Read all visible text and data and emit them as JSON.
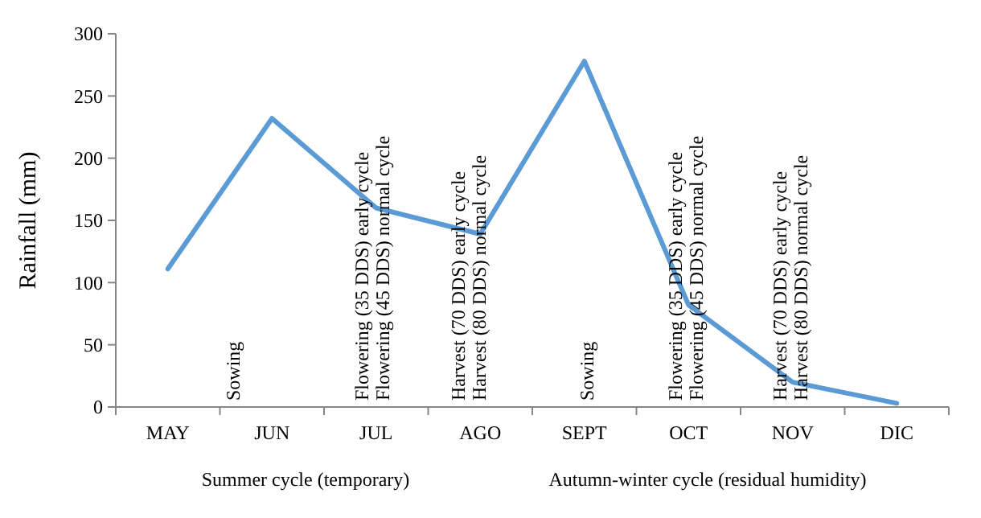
{
  "chart_data": {
    "type": "line",
    "ylabel": "Rainfall (mm)",
    "categories": [
      "MAY",
      "JUN",
      "JUL",
      "AGO",
      "SEPT",
      "OCT",
      "NOV",
      "DIC"
    ],
    "series": [
      {
        "color": "#5b9bd5",
        "values": [
          111,
          232,
          160,
          139,
          278,
          82,
          20,
          3
        ]
      }
    ],
    "ylim": [
      0,
      300
    ],
    "yticks": [
      0,
      50,
      100,
      150,
      200,
      250,
      300
    ],
    "grid": false,
    "marker": "none",
    "line_style": "solid",
    "annotations": [
      "Sowing",
      "Flowering (35 DDS) early cycle",
      "Flowering (45 DDS) normal cycle",
      "Harvest (70 DDS) early cycle",
      "Harvest (80 DDS) normal cycle",
      "Sowing",
      "Flowering (35 DDS) early cycle",
      "Flowering (45 DDS) normal cycle",
      "Harvest (70 DDS) early cycle",
      "Harvest (80 DDS) normal cycle",
      "Summer cycle (temporary)",
      "Autumn-winter cycle (residual humidity)"
    ]
  }
}
